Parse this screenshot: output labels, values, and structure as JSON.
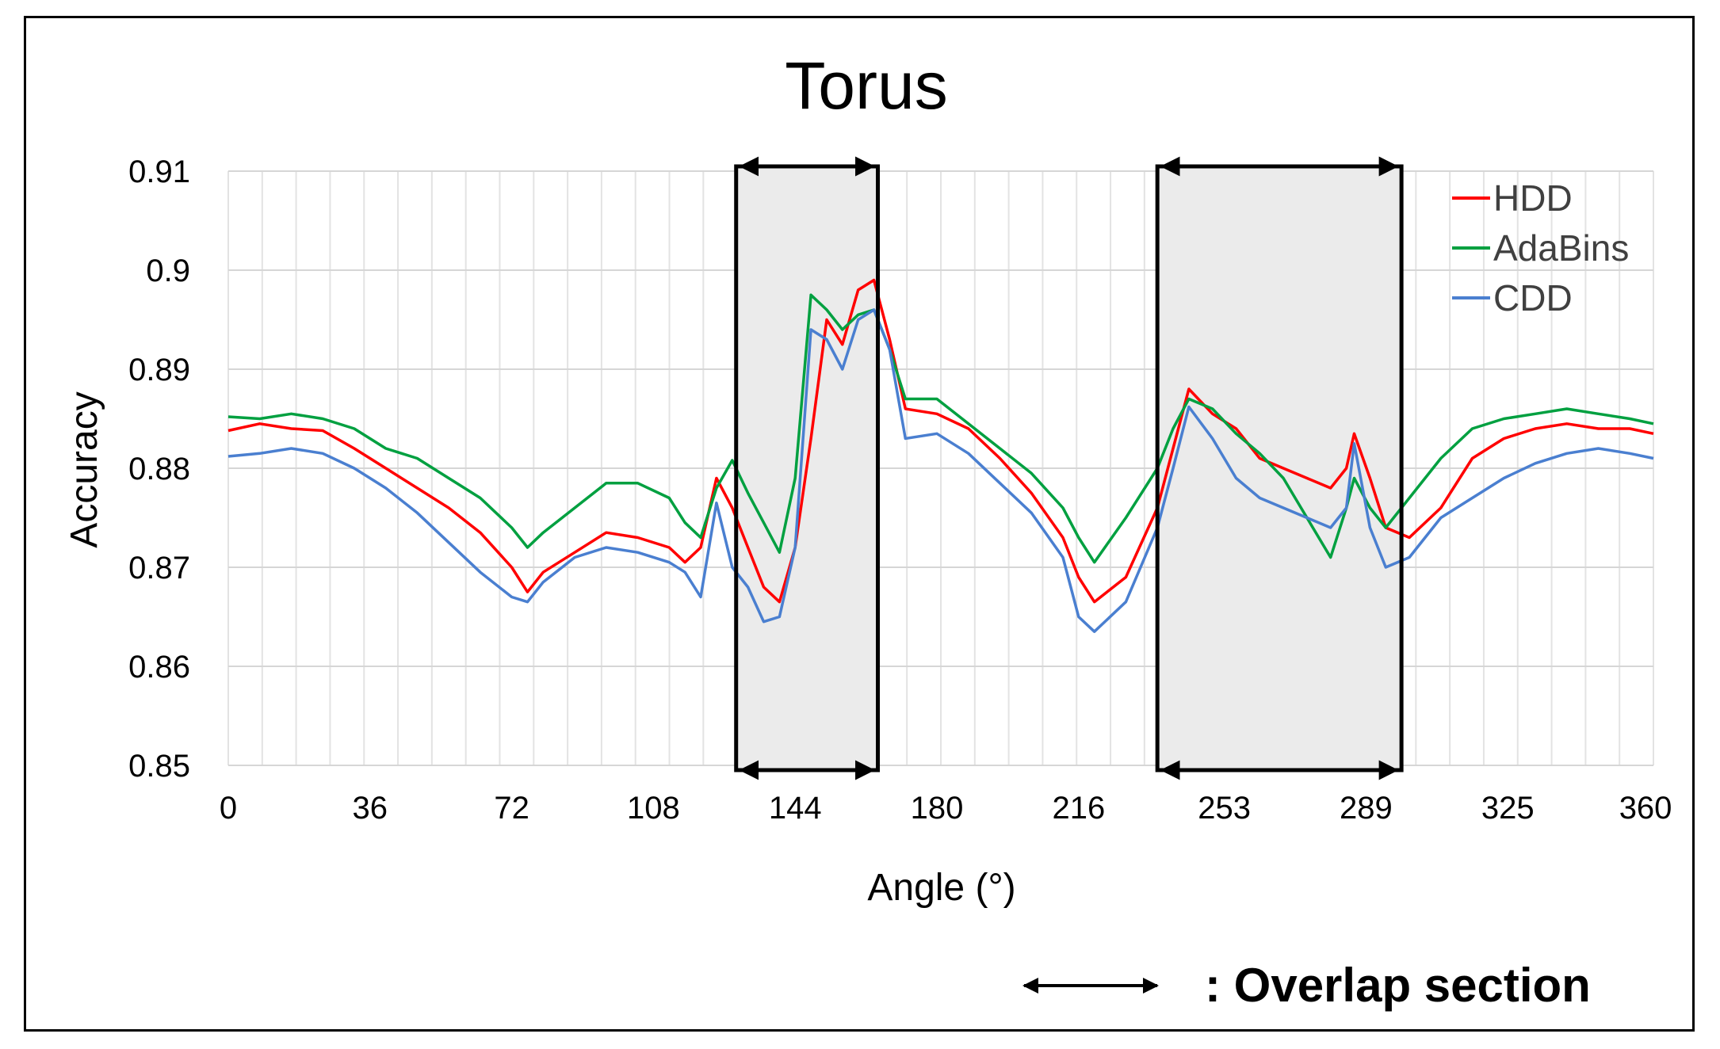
{
  "chart_data": {
    "type": "line",
    "title": "Torus",
    "xlabel": "Angle (°)",
    "ylabel": "Accuracy",
    "xlim": [
      0,
      362
    ],
    "ylim": [
      0.85,
      0.91
    ],
    "x_ticks": [
      0,
      36,
      72,
      108,
      144,
      180,
      216,
      253,
      289,
      325,
      360
    ],
    "x_tick_labels": [
      "0",
      "36",
      "72",
      "108",
      "144",
      "180",
      "216",
      "253",
      "289",
      "325",
      "360"
    ],
    "y_ticks": [
      0.85,
      0.86,
      0.87,
      0.88,
      0.89,
      0.9,
      0.91
    ],
    "y_tick_labels": [
      "0.85",
      "0.86",
      "0.87",
      "0.88",
      "0.89",
      "0.9",
      "0.91"
    ],
    "grid": true,
    "legend_position": "top-right",
    "x": [
      0,
      8,
      16,
      24,
      32,
      40,
      48,
      56,
      64,
      72,
      76,
      80,
      88,
      96,
      104,
      112,
      116,
      120,
      124,
      128,
      132,
      136,
      140,
      144,
      148,
      152,
      156,
      160,
      164,
      168,
      172,
      180,
      188,
      196,
      204,
      212,
      216,
      220,
      228,
      236,
      240,
      244,
      250,
      256,
      262,
      268,
      274,
      280,
      284,
      286,
      290,
      294,
      300,
      308,
      316,
      324,
      332,
      340,
      348,
      356,
      362
    ],
    "series": [
      {
        "name": "HDD",
        "color": "#ff0000",
        "values": [
          0.8838,
          0.8845,
          0.884,
          0.8838,
          0.882,
          0.88,
          0.878,
          0.876,
          0.8735,
          0.87,
          0.8675,
          0.8695,
          0.8715,
          0.8735,
          0.873,
          0.872,
          0.8705,
          0.872,
          0.879,
          0.876,
          0.872,
          0.868,
          0.8665,
          0.872,
          0.883,
          0.895,
          0.8925,
          0.898,
          0.899,
          0.893,
          0.886,
          0.8855,
          0.884,
          0.881,
          0.8775,
          0.873,
          0.869,
          0.8665,
          0.869,
          0.876,
          0.882,
          0.888,
          0.8855,
          0.884,
          0.881,
          0.88,
          0.879,
          0.878,
          0.88,
          0.8835,
          0.879,
          0.874,
          0.873,
          0.876,
          0.881,
          0.883,
          0.884,
          0.8845,
          0.884,
          0.884,
          0.8835
        ]
      },
      {
        "name": "AdaBins",
        "color": "#00a040",
        "values": [
          0.8852,
          0.885,
          0.8855,
          0.885,
          0.884,
          0.882,
          0.881,
          0.879,
          0.877,
          0.874,
          0.872,
          0.8735,
          0.876,
          0.8785,
          0.8785,
          0.877,
          0.8745,
          0.873,
          0.878,
          0.8808,
          0.8775,
          0.8745,
          0.8715,
          0.879,
          0.8975,
          0.896,
          0.894,
          0.8955,
          0.896,
          0.892,
          0.887,
          0.887,
          0.8845,
          0.882,
          0.8795,
          0.876,
          0.873,
          0.8705,
          0.875,
          0.88,
          0.884,
          0.887,
          0.886,
          0.8835,
          0.8815,
          0.879,
          0.875,
          0.871,
          0.876,
          0.879,
          0.876,
          0.874,
          0.877,
          0.881,
          0.884,
          0.885,
          0.8855,
          0.886,
          0.8855,
          0.885,
          0.8845
        ]
      },
      {
        "name": "CDD",
        "color": "#4a7fd0",
        "values": [
          0.8812,
          0.8815,
          0.882,
          0.8815,
          0.88,
          0.878,
          0.8755,
          0.8725,
          0.8695,
          0.867,
          0.8665,
          0.8685,
          0.871,
          0.872,
          0.8715,
          0.8705,
          0.8695,
          0.867,
          0.8765,
          0.87,
          0.868,
          0.8645,
          0.865,
          0.872,
          0.894,
          0.893,
          0.89,
          0.895,
          0.896,
          0.892,
          0.883,
          0.8835,
          0.8815,
          0.8785,
          0.8755,
          0.871,
          0.865,
          0.8635,
          0.8665,
          0.874,
          0.88,
          0.8862,
          0.883,
          0.879,
          0.877,
          0.876,
          0.875,
          0.874,
          0.876,
          0.8825,
          0.874,
          0.87,
          0.871,
          0.875,
          0.877,
          0.879,
          0.8805,
          0.8815,
          0.882,
          0.8815,
          0.881
        ]
      }
    ],
    "overlap_sections": [
      [
        129,
        165
      ],
      [
        236,
        298
      ]
    ],
    "annotation": ": Overlap section"
  }
}
